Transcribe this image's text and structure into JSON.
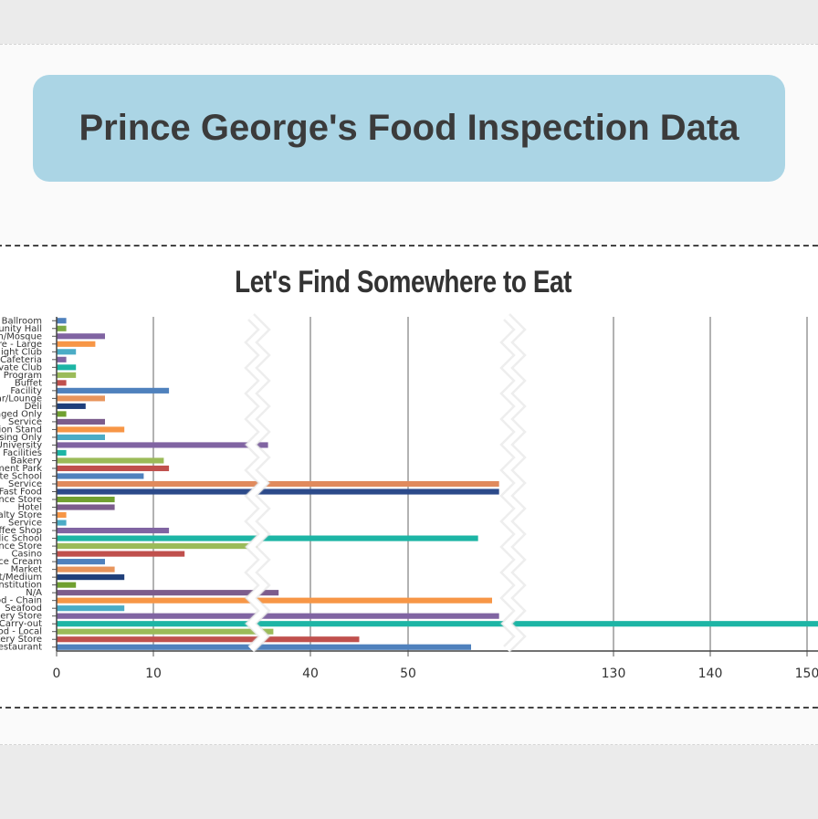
{
  "header": {
    "title": "Prince George's Food Inspection Data"
  },
  "chart_data": {
    "type": "bar",
    "orientation": "horizontal",
    "title": "Let's Find Somewhere to Eat",
    "axis_break": true,
    "x_ticks": [
      "0",
      "10",
      "40",
      "50",
      "130",
      "140",
      "150"
    ],
    "grid": "vertical",
    "categories": [
      "Ballroom",
      "Community Hall",
      "Church/Mosque",
      "Grocery Store - Large",
      "Night Club",
      "Cafeteria",
      "Private Club",
      "Program",
      "Buffet",
      "Facility",
      "Bar/Lounge",
      "Deli",
      "Prepackaged Only",
      "Service",
      "Concession Stand",
      "Dispensing Only",
      "University",
      "Facilities",
      "Bakery",
      "Amusement Park",
      "Private School",
      "Service",
      "Fast Food",
      "Convenience Store",
      "Hotel",
      "Specialty Store",
      "Service",
      "Coffee Shop",
      "Public School",
      "Convenience Store",
      "Casino",
      "Ice Cream",
      "Market",
      "Restaurant/Medium",
      "Institution",
      "N/A",
      "Fast Food - Chain",
      "Seafood",
      "Grocery Store",
      "Carry-out",
      "Fast Food - Local",
      "Bakery Store",
      "Restaurant"
    ],
    "values": [
      1,
      1,
      5,
      4,
      2,
      1,
      2,
      2,
      1,
      13,
      5,
      3,
      1,
      5,
      7,
      5,
      32,
      1,
      12,
      13,
      9,
      63,
      63,
      6,
      6,
      1,
      1,
      13,
      60,
      30,
      16,
      5,
      6,
      7,
      2,
      34,
      62,
      7,
      63,
      155,
      33,
      45,
      59
    ],
    "colors": [
      "#4f81bd",
      "#7daa45",
      "#8064a2",
      "#f79646",
      "#4bacc6",
      "#8064a2",
      "#1db5a5",
      "#9bbb59",
      "#c0504d",
      "#4f81bd",
      "#e8955c",
      "#1f3f7a",
      "#70a030",
      "#7c5c8c",
      "#f79646",
      "#4bacc6",
      "#8064a2",
      "#1db5a5",
      "#9bbb59",
      "#c0504d",
      "#4f81bd",
      "#e08a5c",
      "#2c4a8a",
      "#70a030",
      "#7c5c8c",
      "#f79646",
      "#4bacc6",
      "#8064a2",
      "#1db5a5",
      "#9bbb59",
      "#c0504d",
      "#4f81bd",
      "#e8955c",
      "#1f3f7a",
      "#70a030",
      "#7c5c8c",
      "#f79646",
      "#4bacc6",
      "#8064a2",
      "#1db5a5",
      "#9bbb59",
      "#c0504d",
      "#4f81bd"
    ]
  }
}
